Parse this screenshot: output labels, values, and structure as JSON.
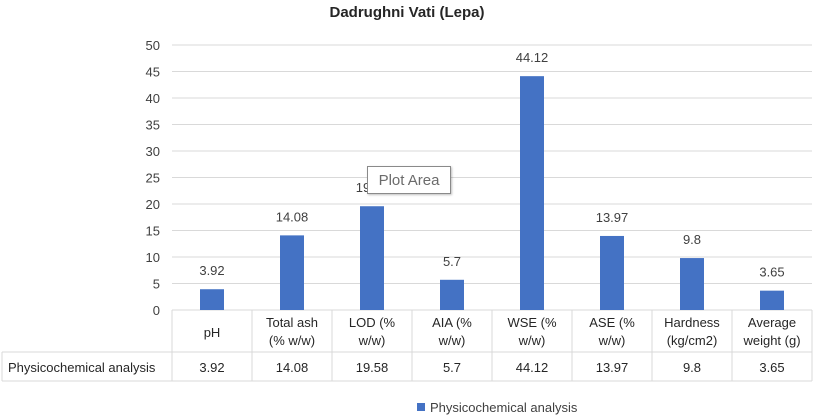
{
  "chart_data": {
    "type": "bar",
    "title": "Dadrughni Vati (Lepa)",
    "categories": [
      [
        "pH"
      ],
      [
        "Total ash",
        "(% w/w)"
      ],
      [
        "LOD (%",
        "w/w)"
      ],
      [
        "AIA (%",
        "w/w)"
      ],
      [
        "WSE (%",
        "w/w)"
      ],
      [
        "ASE (%",
        "w/w)"
      ],
      [
        "Hardness",
        "(kg/cm2)"
      ],
      [
        "Average",
        "weight (g)"
      ]
    ],
    "series": [
      {
        "name": "Physicochemical analysis",
        "values": [
          3.92,
          14.08,
          19.58,
          5.7,
          44.12,
          13.97,
          9.8,
          3.65
        ],
        "color": "#4472c4"
      }
    ],
    "ylim": [
      0,
      50
    ],
    "yticks": [
      0,
      5,
      10,
      15,
      20,
      25,
      30,
      35,
      40,
      45,
      50
    ],
    "data_table": true,
    "legend_position": "bottom",
    "grid": true
  },
  "tooltip": {
    "text": "Plot Area"
  }
}
